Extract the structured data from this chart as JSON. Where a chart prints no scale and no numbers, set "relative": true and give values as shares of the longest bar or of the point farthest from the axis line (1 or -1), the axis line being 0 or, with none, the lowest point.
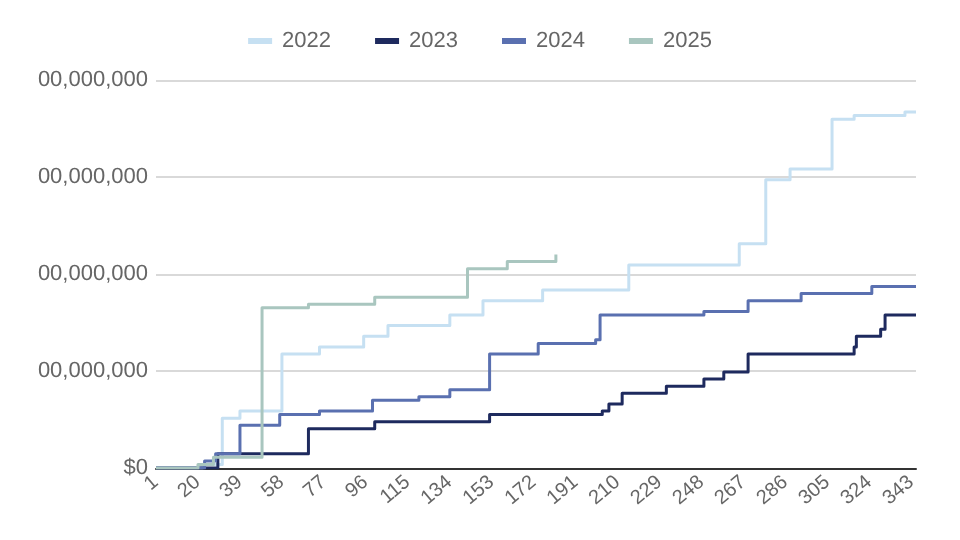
{
  "chart_data": {
    "type": "step",
    "relative": true,
    "xlim": [
      1,
      345
    ],
    "xticks": [
      1,
      20,
      39,
      58,
      77,
      96,
      115,
      134,
      153,
      172,
      191,
      210,
      229,
      248,
      267,
      286,
      305,
      324,
      343
    ],
    "annotations": [
      "$0",
      "00,000,000",
      "00,000,000",
      "00,000,000",
      "00,000,000"
    ],
    "grid": "y",
    "legend": "top",
    "marker": "none",
    "line_style": "solid",
    "series": [
      {
        "name": "2022",
        "color": "#c6e0f2",
        "x": [
          1,
          22,
          31,
          39,
          58,
          75,
          95,
          106,
          134,
          149,
          176,
          215,
          265,
          277,
          288,
          307,
          317,
          340,
          345
        ],
        "values": [
          0,
          0.01,
          0.14,
          0.16,
          0.32,
          0.34,
          0.37,
          0.4,
          0.43,
          0.47,
          0.5,
          0.57,
          0.63,
          0.81,
          0.84,
          0.98,
          0.99,
          1,
          1
        ]
      },
      {
        "name": "2023",
        "color": "#1e2a5e",
        "x": [
          1,
          29,
          70,
          100,
          152,
          203,
          206,
          212,
          232,
          249,
          258,
          269,
          317,
          318,
          329,
          331,
          345
        ],
        "values": [
          0,
          0.04,
          0.11,
          0.13,
          0.15,
          0.16,
          0.18,
          0.21,
          0.23,
          0.25,
          0.27,
          0.32,
          0.34,
          0.37,
          0.39,
          0.43,
          0.43
        ]
      },
      {
        "name": "2024",
        "color": "#5a70b0",
        "x": [
          1,
          23,
          28,
          39,
          57,
          75,
          99,
          120,
          134,
          152,
          174,
          200,
          202,
          249,
          269,
          293,
          325,
          345
        ],
        "values": [
          0,
          0.02,
          0.04,
          0.12,
          0.15,
          0.16,
          0.19,
          0.2,
          0.22,
          0.32,
          0.35,
          0.36,
          0.43,
          0.44,
          0.47,
          0.49,
          0.51,
          0.51
        ]
      },
      {
        "name": "2025",
        "color": "#a9c6bf",
        "x": [
          1,
          20,
          27,
          49,
          70,
          100,
          142,
          160,
          182
        ],
        "values": [
          0,
          0.01,
          0.03,
          0.45,
          0.46,
          0.48,
          0.56,
          0.58,
          0.6
        ]
      }
    ]
  }
}
